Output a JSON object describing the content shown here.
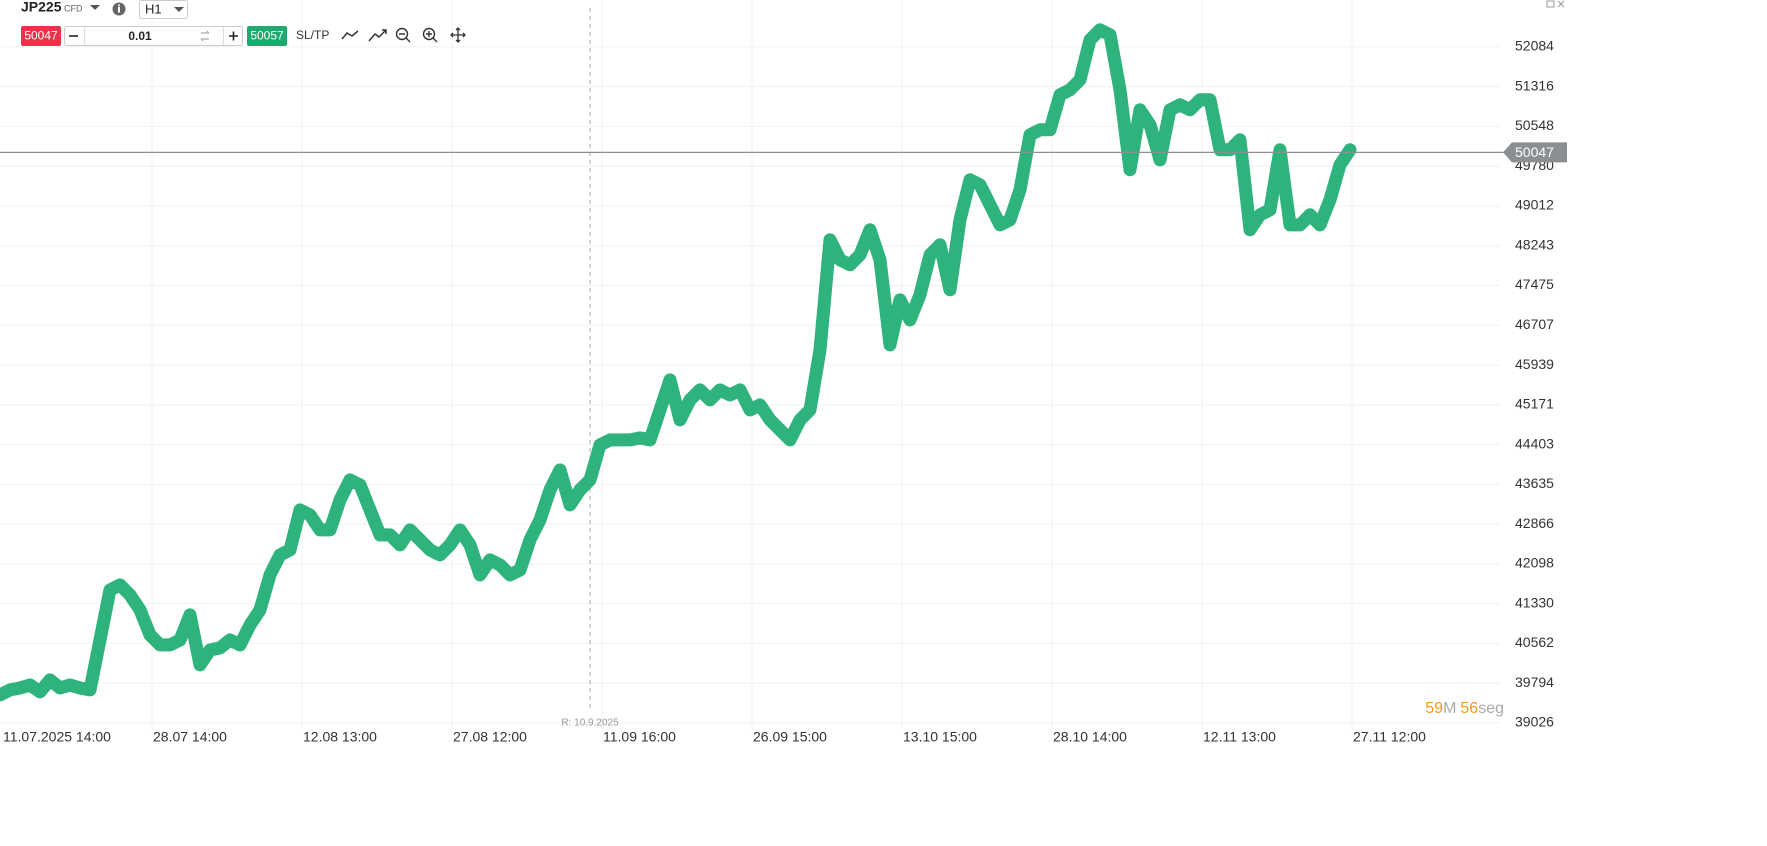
{
  "toolbar": {
    "symbol": "JP225",
    "kind": "CFD",
    "timeframe": "H1",
    "sell": "50047",
    "quantity": "0.01",
    "buy": "50057",
    "sltp": "SL/TP"
  },
  "countdown": {
    "minutes": "59",
    "minutes_unit": "M",
    "seconds": "56",
    "seconds_unit": "seg"
  },
  "chart_data": {
    "type": "line",
    "color": "#2db37b",
    "grid": true,
    "x": [
      0,
      1,
      2,
      3,
      4,
      5,
      6,
      7,
      8,
      9,
      10,
      11,
      12,
      13,
      14,
      15,
      16,
      17,
      18,
      19,
      20,
      21,
      22,
      23,
      24,
      25,
      26,
      27,
      28,
      29,
      30,
      31,
      32,
      33,
      34,
      35,
      36,
      37,
      38,
      39,
      40,
      41,
      42,
      43,
      44,
      45,
      46,
      47,
      48,
      49,
      50,
      51,
      52,
      53,
      54,
      55,
      56,
      57,
      58,
      59,
      60,
      61,
      62,
      63,
      64,
      65,
      66,
      67,
      68,
      69,
      70,
      71,
      72,
      73,
      74,
      75,
      76,
      77,
      78,
      79,
      80,
      81,
      82,
      83,
      84,
      85,
      86,
      87,
      88,
      89,
      90,
      91,
      92,
      93,
      94,
      95,
      96,
      97,
      98,
      99,
      100,
      101,
      102,
      103,
      104,
      105,
      106,
      107,
      108,
      109,
      110,
      111,
      112,
      113,
      114,
      115,
      116,
      117,
      118,
      119,
      120,
      121,
      122,
      123,
      124,
      125,
      126,
      127,
      128,
      129,
      130,
      131,
      132,
      133,
      134,
      135
    ],
    "values": [
      39567,
      39664,
      39702,
      39760,
      39625,
      39857,
      39702,
      39760,
      39702,
      39664,
      40630,
      41596,
      41692,
      41499,
      41209,
      40726,
      40533,
      40533,
      40630,
      41113,
      40147,
      40436,
      40475,
      40630,
      40533,
      40919,
      41209,
      41885,
      42272,
      42368,
      43141,
      43045,
      42755,
      42755,
      43334,
      43721,
      43624,
      43141,
      42658,
      42658,
      42465,
      42755,
      42562,
      42368,
      42272,
      42465,
      42755,
      42465,
      41885,
      42175,
      42079,
      41885,
      41982,
      42562,
      42948,
      43528,
      43914,
      43238,
      43528,
      43721,
      44397,
      44494,
      44494,
      44494,
      44532,
      44494,
      45073,
      45653,
      44880,
      45266,
      45460,
      45266,
      45460,
      45363,
      45460,
      45073,
      45170,
      44880,
      44687,
      44494,
      44880,
      45073,
      46232,
      48358,
      47971,
      47875,
      48068,
      48551,
      47971,
      46329,
      47198,
      46812,
      47295,
      48068,
      48261,
      47392,
      48744,
      49517,
      49420,
      49034,
      48647,
      48744,
      49324,
      50386,
      50483,
      50483,
      51159,
      51256,
      51449,
      52222,
      52415,
      52318,
      51256,
      49710,
      50869,
      50579,
      49903,
      50869,
      50966,
      50869,
      51062,
      51062,
      50096,
      50096,
      50289,
      48551,
      48841,
      48937,
      50096,
      48647,
      48647,
      48841,
      48647,
      49130,
      49807,
      50096
    ],
    "xlim": [
      0,
      150
    ],
    "xticks": [
      {
        "value": 0,
        "label": "11.07.2025 14:00"
      },
      {
        "value": 15,
        "label": "28.07 14:00"
      },
      {
        "value": 30,
        "label": "12.08 13:00"
      },
      {
        "value": 45,
        "label": "27.08 12:00"
      },
      {
        "value": 60,
        "label": "11.09 16:00"
      },
      {
        "value": 75,
        "label": "26.09 15:00"
      },
      {
        "value": 90,
        "label": "13.10 15:00"
      },
      {
        "value": 105,
        "label": "28.10 14:00"
      },
      {
        "value": 120,
        "label": "12.11 13:00"
      },
      {
        "value": 135,
        "label": "27.11 12:00"
      }
    ],
    "ylim": [
      38890,
      52990
    ],
    "yticks": [
      39026,
      39794,
      40562,
      41330,
      42098,
      42866,
      43635,
      44403,
      45171,
      45939,
      46707,
      47475,
      48243,
      49012,
      49780,
      50548,
      51316,
      52084
    ],
    "current_price": 50047,
    "marker": {
      "x": 59,
      "label": "R: 10.9.2025"
    }
  }
}
